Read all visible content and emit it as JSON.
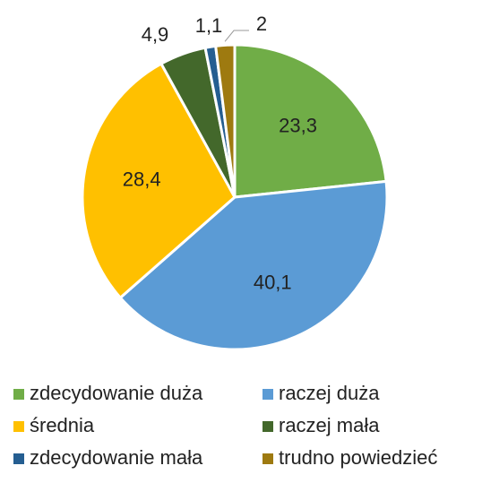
{
  "chart_data": {
    "type": "pie",
    "categories": [
      "zdecydowanie duża",
      "raczej duża",
      "średnia",
      "raczej mała",
      "zdecydowanie mała",
      "trudno powiedzieć"
    ],
    "values": [
      23.3,
      40.1,
      28.4,
      4.9,
      1.1,
      2
    ],
    "value_labels": [
      "23,3",
      "40,1",
      "28,4",
      "4,9",
      "1,1",
      "2"
    ],
    "colors": [
      "#70ad47",
      "#5b9bd5",
      "#ffc000",
      "#43682b",
      "#255e91",
      "#9e7a10"
    ],
    "legend": "bottom"
  }
}
